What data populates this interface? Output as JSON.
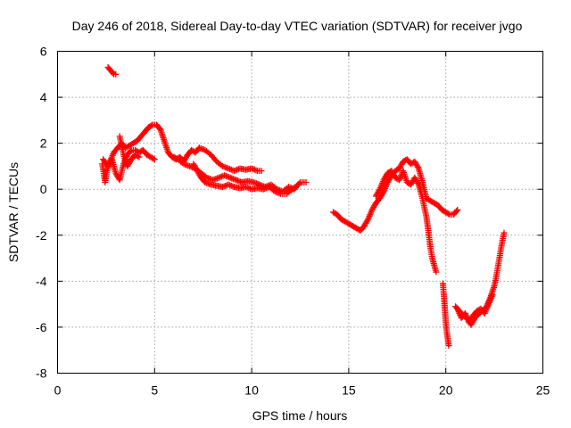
{
  "chart_data": {
    "type": "scatter",
    "title": "Day 246 of 2018, Sidereal Day-to-day VTEC variation (SDTVAR) for receiver jvgo",
    "xlabel": "GPS time / hours",
    "ylabel": "SDTVAR / TECUs",
    "xlim": [
      0,
      25
    ],
    "ylim": [
      -8,
      6
    ],
    "xticks": [
      0,
      5,
      10,
      15,
      20,
      25
    ],
    "yticks": [
      -8,
      -6,
      -4,
      -2,
      0,
      2,
      4,
      6
    ],
    "grid": true,
    "marker": "+",
    "color": "#ff0000",
    "series": [
      {
        "name": "jvgo",
        "segments": [
          [
            [
              2.6,
              5.3
            ],
            [
              2.7,
              5.2
            ],
            [
              2.8,
              5.1
            ],
            [
              2.9,
              5.0
            ],
            [
              3.0,
              5.0
            ]
          ],
          [
            [
              2.3,
              1.1
            ],
            [
              2.4,
              0.6
            ],
            [
              2.45,
              0.3
            ],
            [
              2.55,
              0.8
            ],
            [
              2.7,
              1.2
            ],
            [
              2.9,
              1.6
            ],
            [
              3.1,
              1.8
            ],
            [
              3.3,
              2.0
            ],
            [
              3.5,
              1.8
            ],
            [
              3.7,
              1.9
            ],
            [
              3.9,
              2.0
            ],
            [
              4.1,
              2.1
            ],
            [
              4.3,
              2.3
            ],
            [
              4.5,
              2.5
            ],
            [
              4.7,
              2.7
            ],
            [
              4.9,
              2.8
            ],
            [
              5.1,
              2.8
            ],
            [
              5.3,
              2.6
            ],
            [
              5.5,
              2.1
            ],
            [
              5.7,
              1.6
            ],
            [
              5.9,
              1.4
            ],
            [
              6.1,
              1.3
            ],
            [
              6.3,
              1.4
            ],
            [
              6.5,
              1.2
            ],
            [
              6.7,
              1.5
            ],
            [
              6.9,
              1.7
            ],
            [
              7.1,
              1.6
            ],
            [
              7.3,
              1.8
            ],
            [
              7.6,
              1.7
            ],
            [
              7.9,
              1.5
            ],
            [
              8.2,
              1.2
            ],
            [
              8.5,
              1.0
            ],
            [
              8.8,
              0.9
            ],
            [
              9.1,
              0.8
            ],
            [
              9.4,
              0.9
            ],
            [
              9.7,
              0.85
            ],
            [
              10.0,
              0.9
            ],
            [
              10.3,
              0.8
            ],
            [
              10.5,
              0.8
            ]
          ],
          [
            [
              2.35,
              1.3
            ],
            [
              2.6,
              1.0
            ],
            [
              2.8,
              1.3
            ],
            [
              3.0,
              0.7
            ],
            [
              3.2,
              0.4
            ],
            [
              3.4,
              1.1
            ],
            [
              3.6,
              1.5
            ],
            [
              3.8,
              1.7
            ],
            [
              4.0,
              1.7
            ],
            [
              4.2,
              1.6
            ],
            [
              4.4,
              1.7
            ],
            [
              4.6,
              1.5
            ],
            [
              4.8,
              1.4
            ],
            [
              5.0,
              1.3
            ]
          ],
          [
            [
              3.2,
              2.3
            ],
            [
              3.3,
              1.9
            ],
            [
              3.4,
              1.5
            ],
            [
              3.5,
              1.2
            ],
            [
              3.6,
              1.0
            ],
            [
              3.8,
              1.3
            ],
            [
              4.0,
              1.5
            ],
            [
              4.2,
              1.4
            ]
          ],
          [
            [
              6.0,
              1.4
            ],
            [
              6.2,
              1.3
            ],
            [
              6.5,
              1.1
            ],
            [
              6.8,
              1.0
            ],
            [
              7.1,
              0.9
            ],
            [
              7.4,
              0.7
            ],
            [
              7.7,
              0.5
            ],
            [
              8.0,
              0.4
            ],
            [
              8.3,
              0.5
            ],
            [
              8.6,
              0.6
            ],
            [
              8.9,
              0.5
            ],
            [
              9.2,
              0.4
            ],
            [
              9.5,
              0.3
            ],
            [
              9.8,
              0.35
            ],
            [
              10.1,
              0.3
            ],
            [
              10.4,
              0.2
            ],
            [
              10.7,
              0.1
            ],
            [
              11.0,
              0.2
            ],
            [
              11.3,
              0.0
            ],
            [
              11.6,
              -0.1
            ],
            [
              11.9,
              0.1
            ],
            [
              12.2,
              0.0
            ],
            [
              12.5,
              0.3
            ],
            [
              12.8,
              0.3
            ]
          ],
          [
            [
              7.0,
              1.1
            ],
            [
              7.2,
              0.8
            ],
            [
              7.4,
              0.5
            ],
            [
              7.6,
              0.3
            ],
            [
              7.9,
              0.2
            ],
            [
              8.2,
              0.15
            ],
            [
              8.5,
              0.1
            ],
            [
              8.8,
              0.2
            ],
            [
              9.1,
              0.1
            ],
            [
              9.4,
              0.05
            ],
            [
              9.7,
              0.1
            ],
            [
              10.0,
              0.0
            ],
            [
              10.3,
              0.05
            ],
            [
              10.6,
              0.0
            ],
            [
              10.9,
              0.1
            ],
            [
              11.2,
              -0.1
            ],
            [
              11.5,
              -0.2
            ],
            [
              11.8,
              -0.2
            ],
            [
              12.1,
              0.0
            ],
            [
              12.4,
              0.2
            ]
          ],
          [
            [
              14.2,
              -1.0
            ],
            [
              14.4,
              -1.1
            ],
            [
              14.6,
              -1.3
            ],
            [
              14.8,
              -1.4
            ],
            [
              15.0,
              -1.5
            ],
            [
              15.2,
              -1.6
            ],
            [
              15.4,
              -1.7
            ],
            [
              15.6,
              -1.8
            ],
            [
              15.8,
              -1.6
            ],
            [
              16.0,
              -1.3
            ],
            [
              16.2,
              -0.9
            ],
            [
              16.4,
              -0.6
            ],
            [
              16.6,
              -0.4
            ],
            [
              16.8,
              -0.1
            ],
            [
              17.0,
              0.3
            ],
            [
              17.2,
              0.6
            ],
            [
              17.4,
              0.8
            ],
            [
              17.6,
              0.9
            ],
            [
              17.8,
              1.2
            ],
            [
              18.0,
              1.3
            ],
            [
              18.2,
              1.1
            ],
            [
              18.4,
              1.2
            ],
            [
              18.6,
              0.9
            ],
            [
              18.8,
              0.3
            ],
            [
              19.0,
              -0.4
            ],
            [
              19.2,
              -0.5
            ],
            [
              19.4,
              -0.6
            ],
            [
              19.6,
              -0.7
            ],
            [
              19.8,
              -0.9
            ],
            [
              20.0,
              -1.0
            ],
            [
              20.2,
              -1.1
            ],
            [
              20.4,
              -1.1
            ],
            [
              20.6,
              -0.9
            ]
          ],
          [
            [
              16.4,
              -0.3
            ],
            [
              16.6,
              0.0
            ],
            [
              16.8,
              0.4
            ],
            [
              17.0,
              0.7
            ],
            [
              17.2,
              0.8
            ],
            [
              17.4,
              0.5
            ],
            [
              17.6,
              0.4
            ],
            [
              17.8,
              0.8
            ],
            [
              18.0,
              0.3
            ],
            [
              18.2,
              0.2
            ],
            [
              18.4,
              0.5
            ],
            [
              18.6,
              0.2
            ],
            [
              18.8,
              -0.4
            ],
            [
              19.0,
              -1.2
            ],
            [
              19.1,
              -1.8
            ],
            [
              19.2,
              -2.5
            ],
            [
              19.3,
              -3.0
            ],
            [
              19.4,
              -3.3
            ],
            [
              19.5,
              -3.6
            ]
          ],
          [
            [
              19.85,
              -4.1
            ],
            [
              19.9,
              -4.6
            ],
            [
              19.95,
              -5.2
            ],
            [
              20.0,
              -5.8
            ],
            [
              20.05,
              -6.2
            ],
            [
              20.1,
              -6.5
            ],
            [
              20.15,
              -6.8
            ]
          ],
          [
            [
              20.5,
              -5.1
            ],
            [
              20.7,
              -5.3
            ],
            [
              20.9,
              -5.5
            ],
            [
              21.1,
              -5.6
            ],
            [
              21.3,
              -5.9
            ],
            [
              21.5,
              -5.6
            ],
            [
              21.7,
              -5.4
            ],
            [
              21.9,
              -5.3
            ],
            [
              22.1,
              -5.1
            ],
            [
              22.3,
              -4.7
            ],
            [
              22.5,
              -4.2
            ],
            [
              22.6,
              -3.8
            ],
            [
              22.7,
              -3.3
            ],
            [
              22.8,
              -2.8
            ],
            [
              22.9,
              -2.3
            ],
            [
              23.0,
              -1.9
            ]
          ],
          [
            [
              20.6,
              -5.2
            ],
            [
              20.8,
              -5.6
            ],
            [
              21.0,
              -5.4
            ],
            [
              21.2,
              -5.8
            ],
            [
              21.4,
              -5.5
            ],
            [
              21.6,
              -5.3
            ],
            [
              21.8,
              -5.2
            ],
            [
              22.0,
              -5.4
            ],
            [
              22.2,
              -5.0
            ],
            [
              22.4,
              -4.6
            ]
          ]
        ]
      }
    ]
  }
}
